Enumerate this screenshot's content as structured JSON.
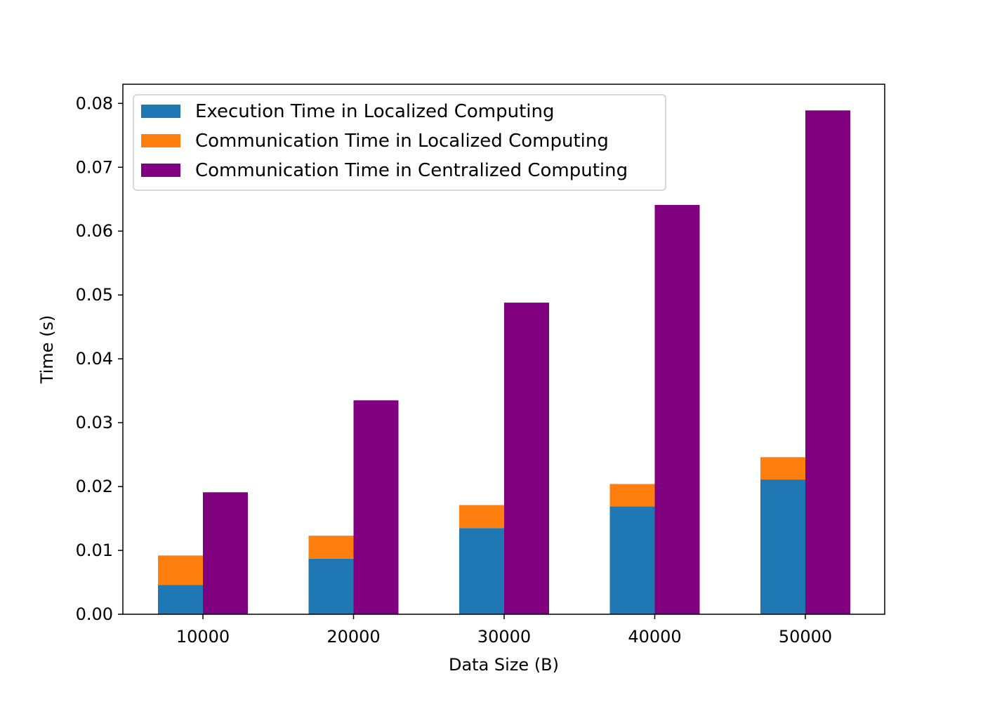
{
  "chart_data": {
    "type": "bar",
    "categories": [
      "10000",
      "20000",
      "30000",
      "40000",
      "50000"
    ],
    "series": [
      {
        "name": "Execution Time in Localized Computing",
        "color": "#1f77b4",
        "stack": "localized",
        "values": [
          0.0046,
          0.0087,
          0.0135,
          0.0169,
          0.0211
        ]
      },
      {
        "name": "Communication Time in Localized Computing",
        "color": "#ff7f0e",
        "stack": "localized",
        "values": [
          0.0046,
          0.0036,
          0.0036,
          0.0035,
          0.0035
        ]
      },
      {
        "name": "Communication Time in Centralized Computing",
        "color": "#800080",
        "stack": "centralized",
        "values": [
          0.0191,
          0.0335,
          0.0488,
          0.0641,
          0.0789
        ]
      }
    ],
    "title": "",
    "xlabel": "Data Size (B)",
    "ylabel": "Time (s)",
    "ylim": [
      0,
      0.083
    ],
    "yticks": [
      "0.00",
      "0.01",
      "0.02",
      "0.03",
      "0.04",
      "0.05",
      "0.06",
      "0.07",
      "0.08"
    ],
    "grid": false,
    "legend_position": "top-left"
  }
}
